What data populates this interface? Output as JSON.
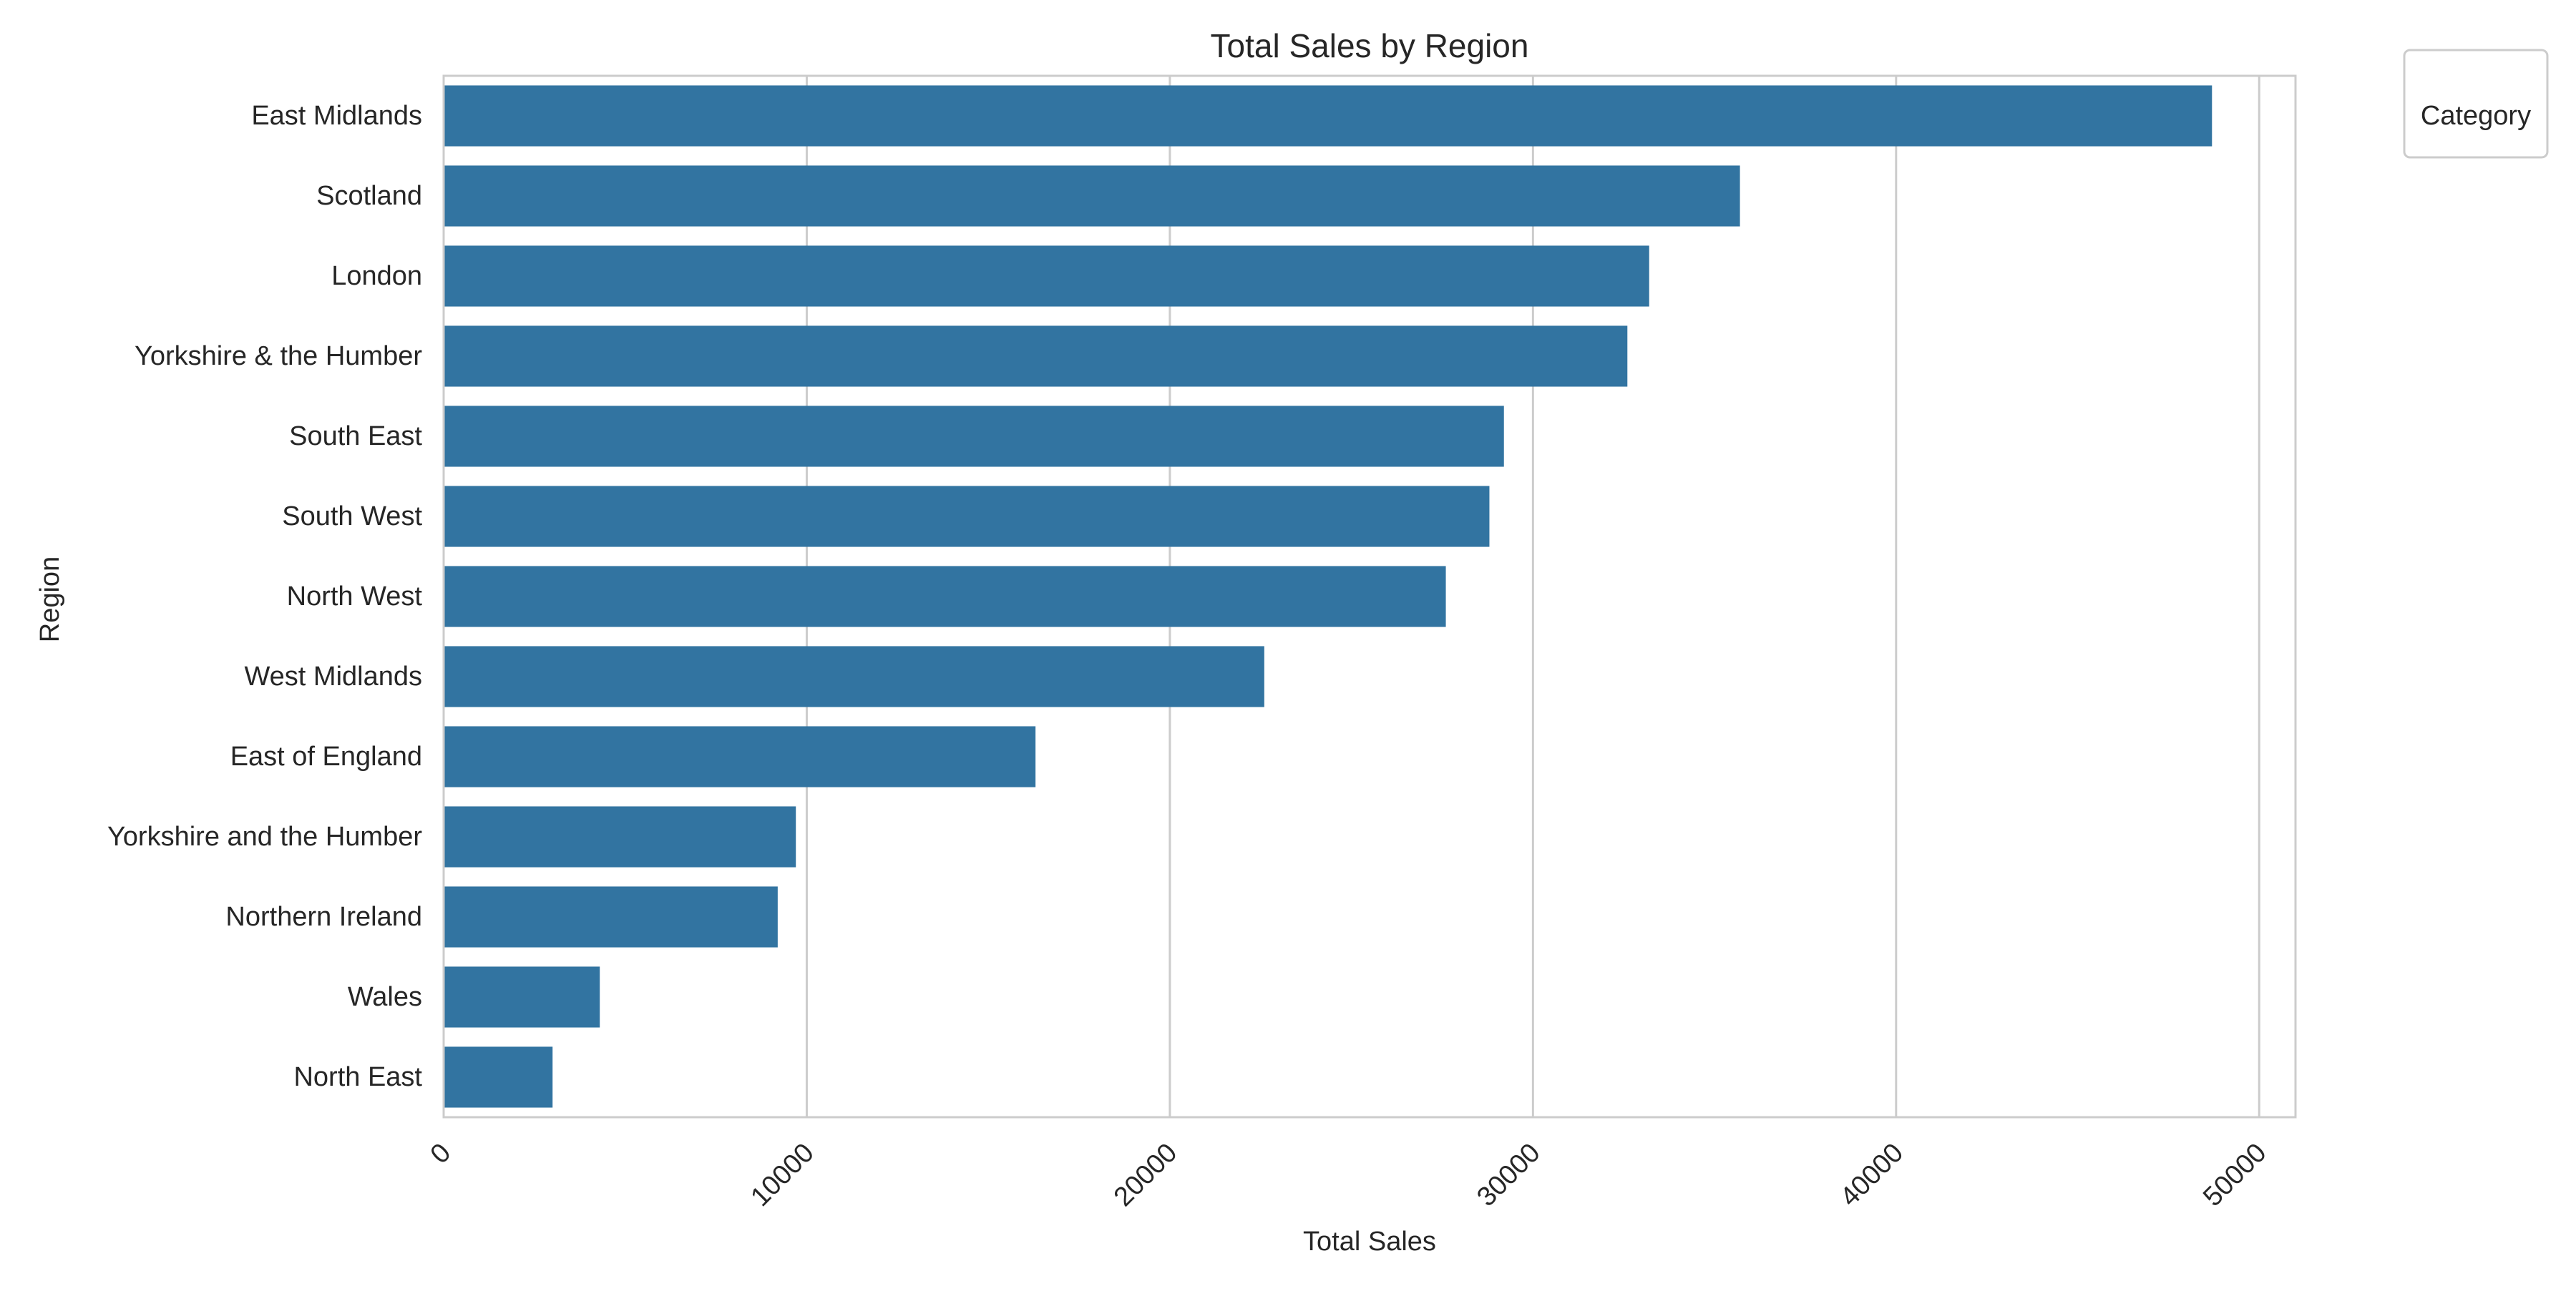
{
  "chart_data": {
    "type": "bar",
    "orientation": "horizontal",
    "title": "Total Sales by Region",
    "xlabel": "Total Sales",
    "ylabel": "Region",
    "categories": [
      "East Midlands",
      "Scotland",
      "London",
      "Yorkshire & the Humber",
      "South East",
      "South West",
      "North West",
      "West Midlands",
      "East of England",
      "Yorkshire and the Humber",
      "Northern Ireland",
      "Wales",
      "North East"
    ],
    "values": [
      48700,
      35700,
      33200,
      32600,
      29200,
      28800,
      27600,
      22600,
      16300,
      9700,
      9200,
      4300,
      3000
    ],
    "xlim": [
      0,
      51000
    ],
    "xticks": [
      "0",
      "10000",
      "20000",
      "30000",
      "40000",
      "50000"
    ],
    "xtick_rotation": -45,
    "grid": "x",
    "bar_color": "#3274a1",
    "grid_color": "#cccccc",
    "frame_color": "#cccccc",
    "legend": {
      "title": "Category",
      "placement": "top-right outside plot",
      "entries": []
    }
  }
}
